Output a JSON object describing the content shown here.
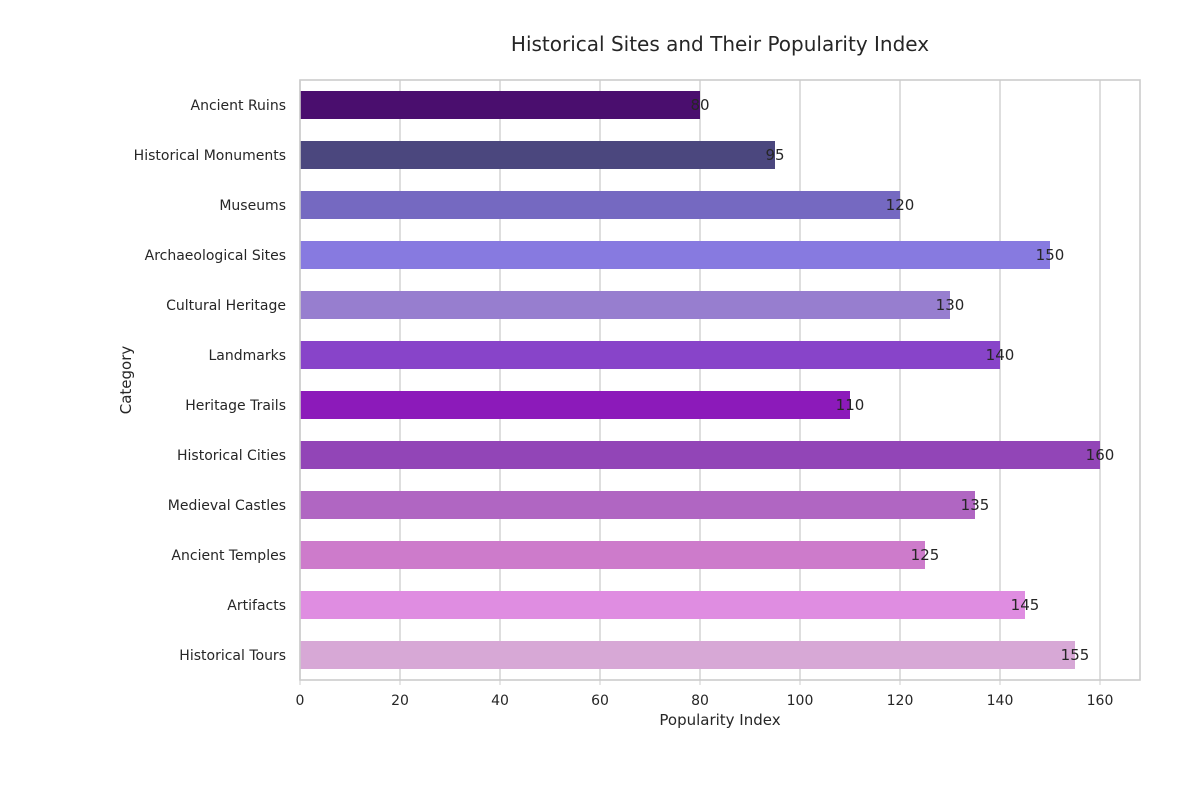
{
  "chart_data": {
    "type": "bar",
    "orientation": "horizontal",
    "title": "Historical Sites and Their Popularity Index",
    "xlabel": "Popularity Index",
    "ylabel": "Category",
    "xlim": [
      0,
      168
    ],
    "xticks": [
      0,
      20,
      40,
      60,
      80,
      100,
      120,
      140,
      160
    ],
    "grid": "vertical",
    "categories": [
      "Ancient Ruins",
      "Historical Monuments",
      "Museums",
      "Archaeological Sites",
      "Cultural Heritage",
      "Landmarks",
      "Heritage Trails",
      "Historical Cities",
      "Medieval Castles",
      "Ancient Temples",
      "Artifacts",
      "Historical Tours"
    ],
    "values": [
      80,
      95,
      120,
      150,
      130,
      140,
      110,
      160,
      135,
      125,
      145,
      155
    ],
    "colors": [
      "#4a0e6e",
      "#4b477e",
      "#7569c1",
      "#877ae0",
      "#977ecf",
      "#8844c9",
      "#8c1aba",
      "#9245b7",
      "#b066c2",
      "#cd7bcb",
      "#df8de1",
      "#d7a8d6"
    ]
  }
}
